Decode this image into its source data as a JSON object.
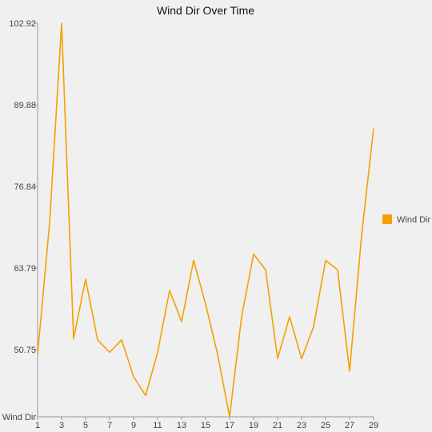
{
  "chart_data": {
    "type": "line",
    "title": "Wind Dir Over Time",
    "xlabel": "",
    "ylabel": "Wind Dir",
    "x": [
      1,
      2,
      3,
      4,
      5,
      6,
      7,
      8,
      9,
      10,
      11,
      12,
      13,
      14,
      15,
      16,
      17,
      18,
      19,
      20,
      21,
      22,
      23,
      24,
      25,
      26,
      27,
      28,
      29
    ],
    "x_tick_labels": [
      "1",
      "3",
      "5",
      "7",
      "9",
      "11",
      "13",
      "15",
      "17",
      "19",
      "21",
      "23",
      "25",
      "27",
      "29"
    ],
    "y_tick_labels": [
      "50.75",
      "63.79",
      "76.84",
      "89.88",
      "102.92"
    ],
    "ylim": [
      40.0,
      102.92
    ],
    "series": [
      {
        "name": "Wind Dir",
        "color": "#f5a000",
        "values": [
          50.0,
          71.0,
          102.9,
          52.5,
          62.0,
          52.3,
          50.3,
          52.3,
          46.4,
          43.4,
          50.3,
          60.2,
          55.2,
          65.0,
          58.0,
          50.0,
          40.0,
          56.0,
          66.0,
          63.5,
          49.3,
          56.0,
          49.3,
          54.4,
          65.0,
          63.5,
          47.3,
          69.0,
          86.1
        ]
      }
    ],
    "legend": {
      "position": "right",
      "label": "Wind Dir"
    },
    "grid": false
  }
}
